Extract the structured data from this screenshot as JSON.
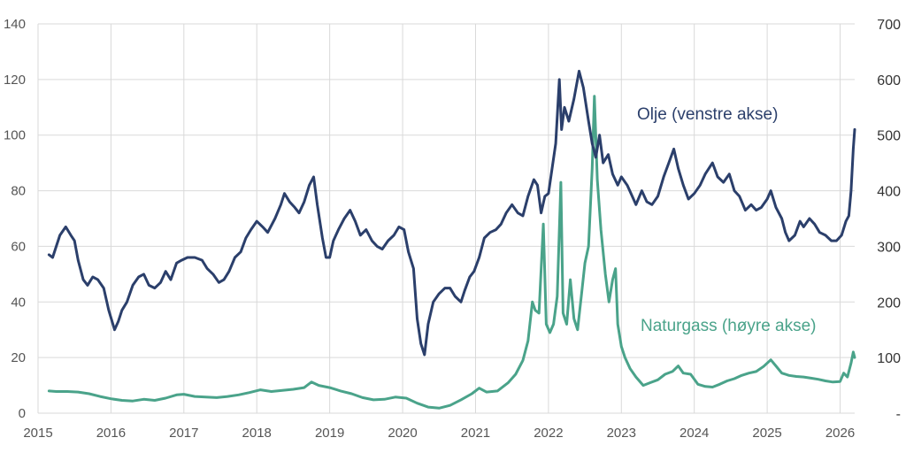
{
  "chart_data": {
    "type": "line",
    "title": "",
    "xlabel": "",
    "ylabel_left": "",
    "ylabel_right": "",
    "grid": true,
    "x_ticks": [
      "2015",
      "2016",
      "2017",
      "2018",
      "2019",
      "2020",
      "2021",
      "2022",
      "2023",
      "2024",
      "2025",
      "2026"
    ],
    "x_range": [
      2015.0,
      2026.2
    ],
    "y_left": {
      "range": [
        0,
        140
      ],
      "ticks": [
        "0",
        "20",
        "40",
        "60",
        "80",
        "100",
        "120",
        "140"
      ]
    },
    "y_right": {
      "range": [
        0,
        700
      ],
      "ticks": [
        "-",
        "100",
        "200",
        "300",
        "400",
        "500",
        "600",
        "700"
      ]
    },
    "colors": {
      "olje": "#2b3f6b",
      "gass": "#4aa38a"
    },
    "series": [
      {
        "name": "Olje (venstre akse)",
        "axis": "left",
        "color": "#2b3f6b",
        "points": [
          [
            2015.15,
            57
          ],
          [
            2015.2,
            56
          ],
          [
            2015.25,
            60
          ],
          [
            2015.3,
            64
          ],
          [
            2015.38,
            67
          ],
          [
            2015.45,
            64
          ],
          [
            2015.5,
            62
          ],
          [
            2015.55,
            55
          ],
          [
            2015.62,
            48
          ],
          [
            2015.68,
            46
          ],
          [
            2015.75,
            49
          ],
          [
            2015.82,
            48
          ],
          [
            2015.9,
            45
          ],
          [
            2015.97,
            37
          ],
          [
            2016.05,
            30
          ],
          [
            2016.1,
            33
          ],
          [
            2016.15,
            37
          ],
          [
            2016.22,
            40
          ],
          [
            2016.3,
            46
          ],
          [
            2016.38,
            49
          ],
          [
            2016.45,
            50
          ],
          [
            2016.52,
            46
          ],
          [
            2016.6,
            45
          ],
          [
            2016.68,
            47
          ],
          [
            2016.75,
            51
          ],
          [
            2016.82,
            48
          ],
          [
            2016.9,
            54
          ],
          [
            2016.97,
            55
          ],
          [
            2017.05,
            56
          ],
          [
            2017.15,
            56
          ],
          [
            2017.25,
            55
          ],
          [
            2017.32,
            52
          ],
          [
            2017.4,
            50
          ],
          [
            2017.48,
            47
          ],
          [
            2017.55,
            48
          ],
          [
            2017.62,
            51
          ],
          [
            2017.7,
            56
          ],
          [
            2017.78,
            58
          ],
          [
            2017.85,
            63
          ],
          [
            2017.92,
            66
          ],
          [
            2018.0,
            69
          ],
          [
            2018.08,
            67
          ],
          [
            2018.15,
            65
          ],
          [
            2018.25,
            70
          ],
          [
            2018.33,
            75
          ],
          [
            2018.38,
            79
          ],
          [
            2018.45,
            76
          ],
          [
            2018.52,
            74
          ],
          [
            2018.58,
            72
          ],
          [
            2018.65,
            76
          ],
          [
            2018.72,
            82
          ],
          [
            2018.78,
            85
          ],
          [
            2018.83,
            75
          ],
          [
            2018.9,
            63
          ],
          [
            2018.95,
            56
          ],
          [
            2019.0,
            56
          ],
          [
            2019.05,
            62
          ],
          [
            2019.12,
            66
          ],
          [
            2019.2,
            70
          ],
          [
            2019.28,
            73
          ],
          [
            2019.35,
            69
          ],
          [
            2019.42,
            64
          ],
          [
            2019.5,
            66
          ],
          [
            2019.58,
            62
          ],
          [
            2019.65,
            60
          ],
          [
            2019.72,
            59
          ],
          [
            2019.8,
            62
          ],
          [
            2019.88,
            64
          ],
          [
            2019.95,
            67
          ],
          [
            2020.02,
            66
          ],
          [
            2020.08,
            58
          ],
          [
            2020.15,
            52
          ],
          [
            2020.2,
            34
          ],
          [
            2020.25,
            25
          ],
          [
            2020.3,
            21
          ],
          [
            2020.35,
            32
          ],
          [
            2020.42,
            40
          ],
          [
            2020.5,
            43
          ],
          [
            2020.58,
            45
          ],
          [
            2020.65,
            45
          ],
          [
            2020.72,
            42
          ],
          [
            2020.8,
            40
          ],
          [
            2020.85,
            44
          ],
          [
            2020.92,
            49
          ],
          [
            2020.98,
            51
          ],
          [
            2021.05,
            56
          ],
          [
            2021.12,
            63
          ],
          [
            2021.2,
            65
          ],
          [
            2021.28,
            66
          ],
          [
            2021.35,
            68
          ],
          [
            2021.42,
            72
          ],
          [
            2021.5,
            75
          ],
          [
            2021.58,
            72
          ],
          [
            2021.65,
            71
          ],
          [
            2021.72,
            78
          ],
          [
            2021.8,
            84
          ],
          [
            2021.85,
            82
          ],
          [
            2021.9,
            72
          ],
          [
            2021.95,
            78
          ],
          [
            2022.0,
            79
          ],
          [
            2022.05,
            88
          ],
          [
            2022.1,
            97
          ],
          [
            2022.15,
            120
          ],
          [
            2022.18,
            102
          ],
          [
            2022.22,
            110
          ],
          [
            2022.28,
            105
          ],
          [
            2022.35,
            113
          ],
          [
            2022.42,
            123
          ],
          [
            2022.48,
            117
          ],
          [
            2022.55,
            105
          ],
          [
            2022.6,
            97
          ],
          [
            2022.65,
            92
          ],
          [
            2022.7,
            100
          ],
          [
            2022.75,
            90
          ],
          [
            2022.82,
            93
          ],
          [
            2022.88,
            86
          ],
          [
            2022.95,
            82
          ],
          [
            2023.0,
            85
          ],
          [
            2023.08,
            82
          ],
          [
            2023.15,
            78
          ],
          [
            2023.2,
            75
          ],
          [
            2023.28,
            80
          ],
          [
            2023.35,
            76
          ],
          [
            2023.42,
            75
          ],
          [
            2023.5,
            78
          ],
          [
            2023.58,
            85
          ],
          [
            2023.65,
            90
          ],
          [
            2023.72,
            95
          ],
          [
            2023.78,
            88
          ],
          [
            2023.85,
            82
          ],
          [
            2023.92,
            77
          ],
          [
            2024.0,
            79
          ],
          [
            2024.08,
            82
          ],
          [
            2024.15,
            86
          ],
          [
            2024.25,
            90
          ],
          [
            2024.32,
            85
          ],
          [
            2024.4,
            83
          ],
          [
            2024.48,
            86
          ],
          [
            2024.55,
            80
          ],
          [
            2024.62,
            78
          ],
          [
            2024.7,
            73
          ],
          [
            2024.78,
            75
          ],
          [
            2024.85,
            73
          ],
          [
            2024.92,
            74
          ],
          [
            2025.0,
            77
          ],
          [
            2025.05,
            80
          ],
          [
            2025.12,
            74
          ],
          [
            2025.2,
            70
          ],
          [
            2025.25,
            65
          ],
          [
            2025.3,
            62
          ],
          [
            2025.38,
            64
          ],
          [
            2025.45,
            69
          ],
          [
            2025.5,
            67
          ],
          [
            2025.58,
            70
          ],
          [
            2025.65,
            68
          ],
          [
            2025.72,
            65
          ],
          [
            2025.8,
            64
          ],
          [
            2025.88,
            62
          ],
          [
            2025.95,
            62
          ],
          [
            2026.02,
            64
          ],
          [
            2026.08,
            69
          ],
          [
            2026.12,
            71
          ],
          [
            2026.15,
            80
          ],
          [
            2026.18,
            95
          ],
          [
            2026.2,
            102
          ]
        ]
      },
      {
        "name": "Naturgass (høyre akse)",
        "axis": "right",
        "color": "#4aa38a",
        "points": [
          [
            2015.15,
            40
          ],
          [
            2015.25,
            39
          ],
          [
            2015.4,
            39
          ],
          [
            2015.55,
            38
          ],
          [
            2015.7,
            35
          ],
          [
            2015.85,
            30
          ],
          [
            2016.0,
            26
          ],
          [
            2016.15,
            23
          ],
          [
            2016.3,
            22
          ],
          [
            2016.45,
            25
          ],
          [
            2016.6,
            23
          ],
          [
            2016.75,
            27
          ],
          [
            2016.9,
            33
          ],
          [
            2017.0,
            34
          ],
          [
            2017.15,
            30
          ],
          [
            2017.3,
            29
          ],
          [
            2017.45,
            28
          ],
          [
            2017.6,
            30
          ],
          [
            2017.75,
            33
          ],
          [
            2017.9,
            37
          ],
          [
            2018.05,
            42
          ],
          [
            2018.2,
            39
          ],
          [
            2018.35,
            41
          ],
          [
            2018.5,
            43
          ],
          [
            2018.65,
            46
          ],
          [
            2018.75,
            56
          ],
          [
            2018.85,
            50
          ],
          [
            2019.0,
            46
          ],
          [
            2019.15,
            40
          ],
          [
            2019.3,
            35
          ],
          [
            2019.45,
            28
          ],
          [
            2019.6,
            24
          ],
          [
            2019.75,
            25
          ],
          [
            2019.9,
            29
          ],
          [
            2020.05,
            27
          ],
          [
            2020.2,
            18
          ],
          [
            2020.35,
            11
          ],
          [
            2020.5,
            9
          ],
          [
            2020.65,
            14
          ],
          [
            2020.8,
            24
          ],
          [
            2020.95,
            35
          ],
          [
            2021.05,
            45
          ],
          [
            2021.15,
            38
          ],
          [
            2021.3,
            40
          ],
          [
            2021.45,
            55
          ],
          [
            2021.55,
            70
          ],
          [
            2021.65,
            95
          ],
          [
            2021.72,
            130
          ],
          [
            2021.78,
            200
          ],
          [
            2021.82,
            185
          ],
          [
            2021.87,
            180
          ],
          [
            2021.93,
            340
          ],
          [
            2021.97,
            160
          ],
          [
            2022.02,
            145
          ],
          [
            2022.07,
            160
          ],
          [
            2022.12,
            210
          ],
          [
            2022.17,
            415
          ],
          [
            2022.2,
            180
          ],
          [
            2022.25,
            160
          ],
          [
            2022.3,
            240
          ],
          [
            2022.35,
            170
          ],
          [
            2022.4,
            150
          ],
          [
            2022.45,
            210
          ],
          [
            2022.5,
            270
          ],
          [
            2022.55,
            300
          ],
          [
            2022.6,
            440
          ],
          [
            2022.63,
            570
          ],
          [
            2022.67,
            420
          ],
          [
            2022.72,
            330
          ],
          [
            2022.78,
            250
          ],
          [
            2022.83,
            200
          ],
          [
            2022.88,
            240
          ],
          [
            2022.92,
            260
          ],
          [
            2022.95,
            160
          ],
          [
            2023.0,
            120
          ],
          [
            2023.05,
            100
          ],
          [
            2023.12,
            80
          ],
          [
            2023.2,
            65
          ],
          [
            2023.3,
            50
          ],
          [
            2023.4,
            55
          ],
          [
            2023.5,
            60
          ],
          [
            2023.6,
            70
          ],
          [
            2023.7,
            75
          ],
          [
            2023.78,
            85
          ],
          [
            2023.85,
            72
          ],
          [
            2023.95,
            70
          ],
          [
            2024.05,
            52
          ],
          [
            2024.15,
            48
          ],
          [
            2024.25,
            47
          ],
          [
            2024.35,
            52
          ],
          [
            2024.45,
            58
          ],
          [
            2024.55,
            62
          ],
          [
            2024.65,
            68
          ],
          [
            2024.75,
            72
          ],
          [
            2024.85,
            75
          ],
          [
            2024.95,
            84
          ],
          [
            2025.05,
            96
          ],
          [
            2025.12,
            85
          ],
          [
            2025.2,
            72
          ],
          [
            2025.3,
            68
          ],
          [
            2025.4,
            66
          ],
          [
            2025.5,
            65
          ],
          [
            2025.6,
            63
          ],
          [
            2025.7,
            61
          ],
          [
            2025.8,
            58
          ],
          [
            2025.9,
            56
          ],
          [
            2026.0,
            57
          ],
          [
            2026.05,
            72
          ],
          [
            2026.1,
            65
          ],
          [
            2026.15,
            90
          ],
          [
            2026.18,
            110
          ],
          [
            2026.2,
            100
          ]
        ]
      }
    ]
  }
}
